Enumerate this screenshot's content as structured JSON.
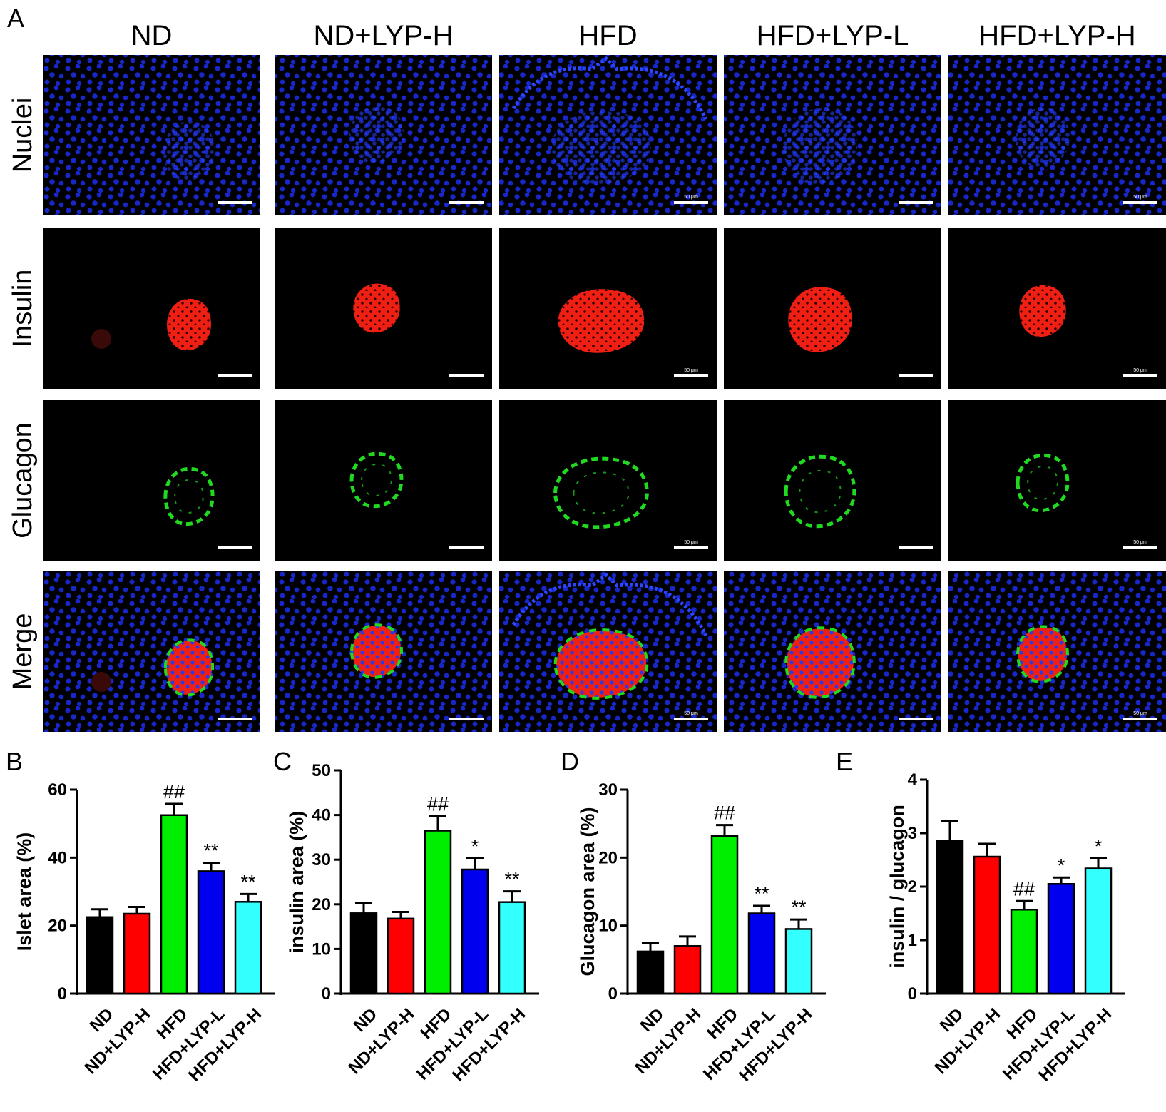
{
  "micrographs": {
    "panel_letter": "A",
    "columns": [
      "ND",
      "ND+LYP-H",
      "HFD",
      "HFD+LYP-L",
      "HFD+LYP-H"
    ],
    "rows": [
      "Nuclei",
      "Insulin",
      "Glucagon",
      "Merge"
    ],
    "scale_bar_text": "50 μm",
    "scale_bar_text_columns": [
      2,
      4
    ],
    "stain_colors": {
      "background": "#000000",
      "nuclei": "#1a2be0",
      "insulin": "#ef1f14",
      "glucagon": "#22d922"
    }
  },
  "category_colors": [
    "#000000",
    "#ff0000",
    "#00ee00",
    "#0000ee",
    "#33ffff"
  ],
  "chart_data": [
    {
      "panel": "B",
      "type": "bar",
      "title": "",
      "ylabel": "Islet area (%)",
      "ylim": [
        0,
        60
      ],
      "yticks": [
        0,
        20,
        40,
        60
      ],
      "categories": [
        "ND",
        "ND+LYP-H",
        "HFD",
        "HFD+LYP-L",
        "HFD+LYP-H"
      ],
      "values": [
        22.5,
        23.5,
        52.5,
        36.0,
        27.0
      ],
      "errors": [
        2.3,
        2.0,
        3.3,
        2.5,
        2.3
      ],
      "annotations": [
        "",
        "",
        "##",
        "**",
        "**"
      ]
    },
    {
      "panel": "C",
      "type": "bar",
      "title": "",
      "ylabel": "insulin area (%)",
      "ylim": [
        0,
        50
      ],
      "yticks": [
        0,
        10,
        20,
        30,
        40,
        50
      ],
      "categories": [
        "ND",
        "ND+LYP-H",
        "HFD",
        "HFD+LYP-L",
        "HFD+LYP-H"
      ],
      "values": [
        18.0,
        16.8,
        36.5,
        27.8,
        20.5
      ],
      "errors": [
        2.2,
        1.5,
        3.2,
        2.5,
        2.4
      ],
      "annotations": [
        "",
        "",
        "##",
        "*",
        "**"
      ]
    },
    {
      "panel": "D",
      "type": "bar",
      "title": "",
      "ylabel": "Glucagon area  (%)",
      "ylim": [
        0,
        30
      ],
      "yticks": [
        0,
        10,
        20,
        30
      ],
      "categories": [
        "ND",
        "ND+LYP-H",
        "HFD",
        "HFD+LYP-L",
        "HFD+LYP-H"
      ],
      "values": [
        6.2,
        7.0,
        23.2,
        11.8,
        9.5
      ],
      "errors": [
        1.2,
        1.4,
        1.6,
        1.1,
        1.4
      ],
      "annotations": [
        "",
        "",
        "##",
        "**",
        "**"
      ]
    },
    {
      "panel": "E",
      "type": "bar",
      "title": "",
      "ylabel": "insulin / glucagon",
      "ylim": [
        0,
        4
      ],
      "yticks": [
        0,
        1,
        2,
        3,
        4
      ],
      "categories": [
        "ND",
        "ND+LYP-H",
        "HFD",
        "HFD+LYP-L",
        "HFD+LYP-H"
      ],
      "values": [
        2.86,
        2.56,
        1.57,
        2.05,
        2.34
      ],
      "errors": [
        0.36,
        0.24,
        0.16,
        0.12,
        0.19
      ],
      "annotations": [
        "",
        "",
        "##",
        "*",
        "*"
      ]
    }
  ]
}
